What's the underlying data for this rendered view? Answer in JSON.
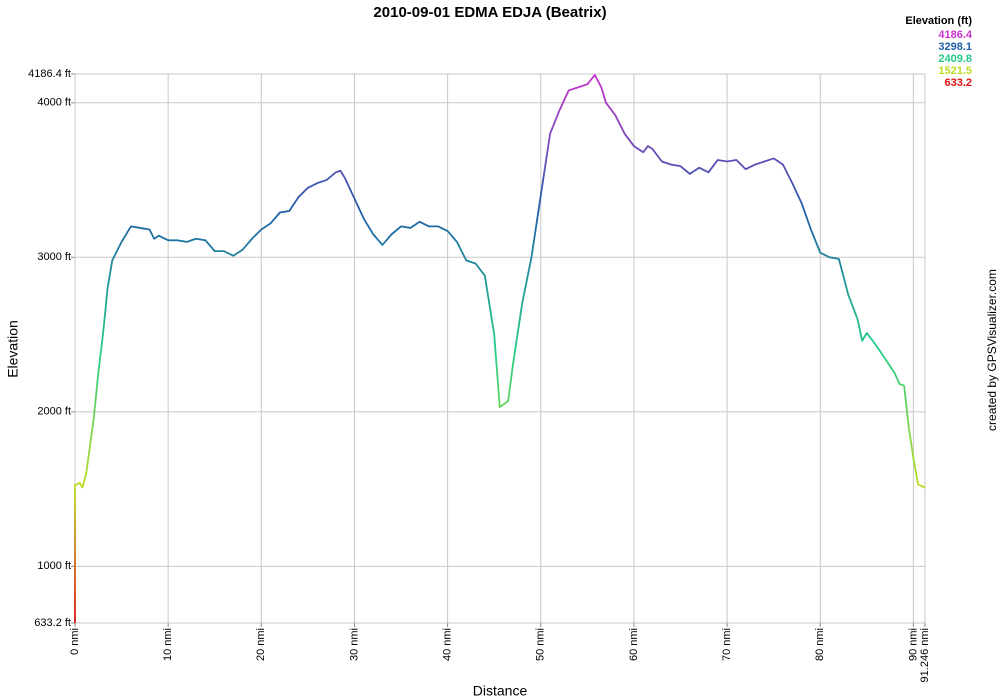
{
  "chart_data": {
    "type": "line",
    "title": "2010-09-01 EDMA EDJA (Beatrix)",
    "xlabel": "Distance",
    "ylabel": "Elevation",
    "credit": "created by GPSVisualizer.com",
    "legend": {
      "title": "Elevation (ft)",
      "position": "top-right",
      "stops": [
        {
          "value": 4186.4,
          "color": "#cc33cc"
        },
        {
          "value": 3298.1,
          "color": "#1f5fa8"
        },
        {
          "value": 2409.8,
          "color": "#22cc88"
        },
        {
          "value": 1521.5,
          "color": "#bbdd22"
        },
        {
          "value": 633.2,
          "color": "#dd1111"
        }
      ]
    },
    "grid": true,
    "xlim": [
      0,
      91.246
    ],
    "ylim": [
      633.2,
      4186.4
    ],
    "xticks": [
      {
        "value": 0,
        "label": "0 nmi"
      },
      {
        "value": 10,
        "label": "10 nmi"
      },
      {
        "value": 20,
        "label": "20 nmi"
      },
      {
        "value": 30,
        "label": "30 nmi"
      },
      {
        "value": 40,
        "label": "40 nmi"
      },
      {
        "value": 50,
        "label": "50 nmi"
      },
      {
        "value": 60,
        "label": "60 nmi"
      },
      {
        "value": 70,
        "label": "70 nmi"
      },
      {
        "value": 80,
        "label": "80 nmi"
      },
      {
        "value": 90,
        "label": "90 nmi"
      },
      {
        "value": 91.246,
        "label": "91.246 nmi"
      }
    ],
    "yticks": [
      {
        "value": 633.2,
        "label": "633.2 ft"
      },
      {
        "value": 1000,
        "label": "1000 ft"
      },
      {
        "value": 2000,
        "label": "2000 ft"
      },
      {
        "value": 3000,
        "label": "3000 ft"
      },
      {
        "value": 4000,
        "label": "4000 ft"
      },
      {
        "value": 4186.4,
        "label": "4186.4 ft"
      }
    ],
    "x": [
      0,
      0,
      0.5,
      0.8,
      1.2,
      2,
      2.5,
      3,
      3.5,
      4,
      5,
      6,
      7,
      8,
      8.5,
      9,
      10,
      11,
      12,
      13,
      14,
      15,
      16,
      17,
      18,
      19,
      20,
      21,
      22,
      23,
      24,
      25,
      26,
      27,
      28,
      28.5,
      29,
      30,
      31,
      32,
      33,
      34,
      35,
      36,
      37,
      38,
      39,
      40,
      41,
      42,
      43,
      44,
      45,
      45.6,
      46.5,
      47,
      48,
      49,
      50,
      51,
      52,
      53,
      54,
      55,
      55.8,
      56.5,
      57,
      58,
      59,
      60,
      61,
      61.5,
      62,
      63,
      64,
      65,
      66,
      67,
      68,
      69,
      70,
      71,
      72,
      73,
      74,
      75,
      76,
      77,
      78,
      79,
      80,
      81,
      82,
      83,
      84,
      84.5,
      85,
      86,
      87,
      88,
      88.5,
      89,
      89.5,
      90,
      90.5,
      91.246
    ],
    "values": [
      633.2,
      1525,
      1540,
      1510,
      1600,
      1950,
      2250,
      2500,
      2800,
      2980,
      3100,
      3200,
      3190,
      3180,
      3120,
      3140,
      3110,
      3110,
      3100,
      3120,
      3110,
      3040,
      3040,
      3010,
      3050,
      3120,
      3180,
      3220,
      3290,
      3300,
      3390,
      3450,
      3480,
      3500,
      3550,
      3560,
      3510,
      3380,
      3250,
      3150,
      3080,
      3150,
      3200,
      3190,
      3230,
      3200,
      3200,
      3170,
      3100,
      2980,
      2960,
      2880,
      2500,
      2030,
      2070,
      2300,
      2700,
      3000,
      3400,
      3800,
      3950,
      4080,
      4100,
      4120,
      4180,
      4100,
      4000,
      3920,
      3800,
      3720,
      3680,
      3720,
      3700,
      3620,
      3600,
      3590,
      3540,
      3580,
      3550,
      3630,
      3620,
      3630,
      3570,
      3600,
      3620,
      3640,
      3600,
      3480,
      3350,
      3180,
      3030,
      3000,
      2990,
      2760,
      2600,
      2460,
      2510,
      2430,
      2340,
      2250,
      2180,
      2170,
      1900,
      1700,
      1530,
      1510
    ]
  }
}
